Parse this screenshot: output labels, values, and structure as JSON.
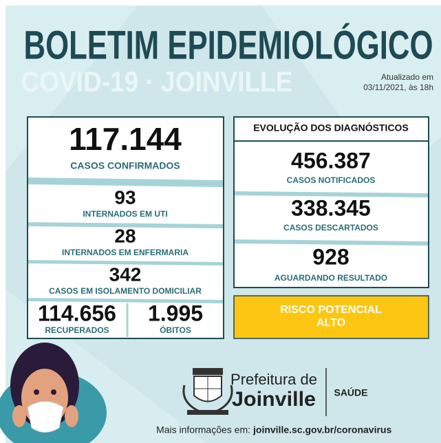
{
  "header": {
    "title": "BOLETIM EPIDEMIOLÓGICO",
    "subtitle": "COVID-19 · JOINVILLE",
    "updated_label": "Atualizado em",
    "updated_date": "03/11/2021, às 18h"
  },
  "left_panel": {
    "items": [
      {
        "value": "117.144",
        "label": "CASOS CONFIRMADOS"
      },
      {
        "value": "93",
        "label": "INTERNADOS EM UTI"
      },
      {
        "value": "28",
        "label": "INTERNADOS EM ENFERMARIA"
      },
      {
        "value": "342",
        "label": "CASOS EM ISOLAMENTO DOMICILIAR"
      },
      {
        "value": "114.656",
        "label": "RECUPERADOS"
      },
      {
        "value": "1.995",
        "label": "ÓBITOS"
      }
    ]
  },
  "right_panel": {
    "title": "EVOLUÇÃO DOS DIAGNÓSTICOS",
    "items": [
      {
        "value": "456.387",
        "label": "CASOS NOTIFICADOS"
      },
      {
        "value": "338.345",
        "label": "CASOS DESCARTADOS"
      },
      {
        "value": "928",
        "label": "AGUARDANDO RESULTADO"
      }
    ]
  },
  "risk": {
    "line1": "RISCO POTENCIAL",
    "line2": "ALTO"
  },
  "footer": {
    "org_line1": "Prefeitura de",
    "org_line2": "Joinville",
    "department": "SAÚDE",
    "info_label": "Mais informações em:",
    "info_url": "joinville.sc.gov.br/coronavirus"
  }
}
